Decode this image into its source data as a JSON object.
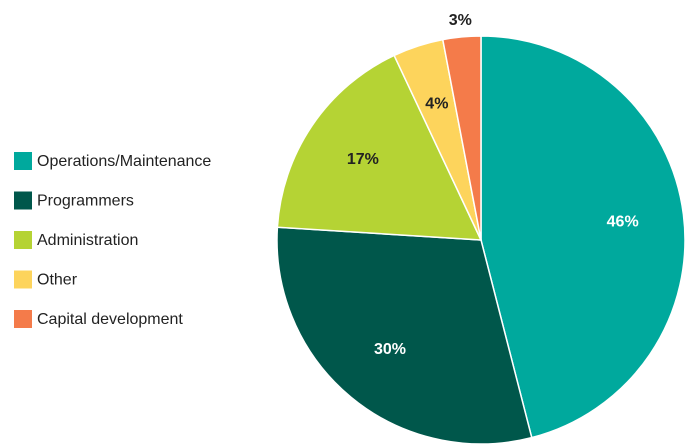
{
  "chart_data": {
    "type": "pie",
    "categories": [
      "Operations/Maintenance",
      "Programmers",
      "Administration",
      "Other",
      "Capital development"
    ],
    "values": [
      46,
      30,
      17,
      4,
      3
    ],
    "value_labels": [
      "46%",
      "30%",
      "17%",
      "4%",
      "3%"
    ],
    "colors": [
      "#00a99d",
      "#00574b",
      "#b5d334",
      "#fdd45c",
      "#f47b4a"
    ],
    "legend": "left"
  }
}
